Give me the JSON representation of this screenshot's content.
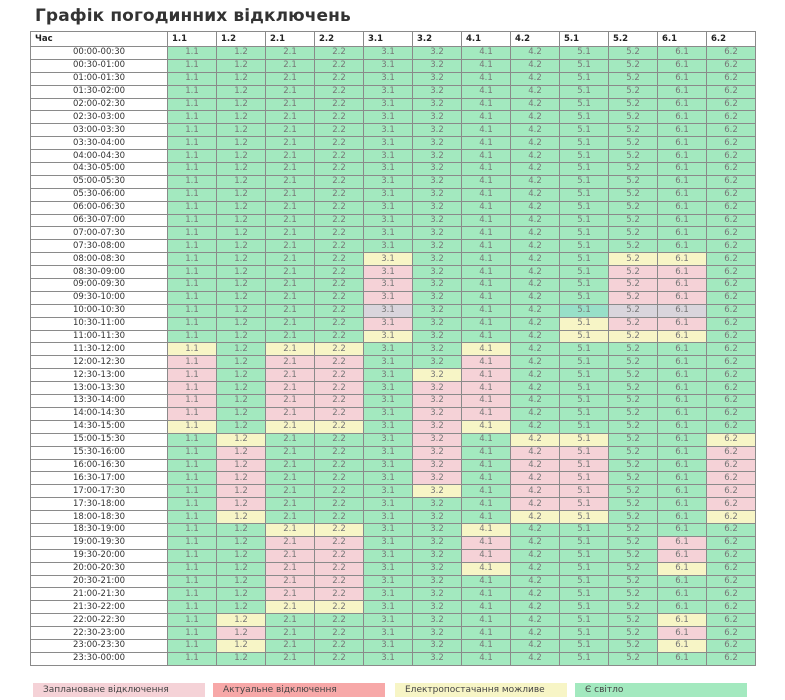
{
  "title": "Графік погодинних відключень",
  "header": [
    "Час",
    "1.1",
    "1.2",
    "2.1",
    "2.2",
    "3.1",
    "3.2",
    "4.1",
    "4.2",
    "5.1",
    "5.2",
    "6.1",
    "6.2"
  ],
  "colors": {
    "g": "#a3e9bf",
    "p": "#f5d2d7",
    "r": "#f7a8a8",
    "y": "#f7f5c6"
  },
  "status_codes": {
    "g": "light",
    "p": "scheduled-outage",
    "r": "actual-outage",
    "y": "possible-supply",
    "h": "scheduled-outage-highlighted",
    "t": "light-highlighted"
  },
  "rows": [
    {
      "time": "00:00-00:30",
      "s": "gggggggggggg"
    },
    {
      "time": "00:30-01:00",
      "s": "gggggggggggg"
    },
    {
      "time": "01:00-01:30",
      "s": "gggggggggggg"
    },
    {
      "time": "01:30-02:00",
      "s": "gggggggggggg"
    },
    {
      "time": "02:00-02:30",
      "s": "gggggggggggg"
    },
    {
      "time": "02:30-03:00",
      "s": "gggggggggggg"
    },
    {
      "time": "03:00-03:30",
      "s": "gggggggggggg"
    },
    {
      "time": "03:30-04:00",
      "s": "gggggggggggg"
    },
    {
      "time": "04:00-04:30",
      "s": "gggggggggggg"
    },
    {
      "time": "04:30-05:00",
      "s": "gggggggggggg"
    },
    {
      "time": "05:00-05:30",
      "s": "gggggggggggg"
    },
    {
      "time": "05:30-06:00",
      "s": "gggggggggggg"
    },
    {
      "time": "06:00-06:30",
      "s": "gggggggggggg"
    },
    {
      "time": "06:30-07:00",
      "s": "gggggggggggg"
    },
    {
      "time": "07:00-07:30",
      "s": "gggggggggggg"
    },
    {
      "time": "07:30-08:00",
      "s": "gggggggggggg"
    },
    {
      "time": "08:00-08:30",
      "s": "ggggyggggyyg"
    },
    {
      "time": "08:30-09:00",
      "s": "ggggpggggppg"
    },
    {
      "time": "09:00-09:30",
      "s": "ggggpggggppg"
    },
    {
      "time": "09:30-10:00",
      "s": "ggggpggggppg"
    },
    {
      "time": "10:00-10:30",
      "s": "gggghgggthhg"
    },
    {
      "time": "10:30-11:00",
      "s": "ggggpgggyppg"
    },
    {
      "time": "11:00-11:30",
      "s": "ggggygggyyyg"
    },
    {
      "time": "11:30-12:00",
      "s": "ygyyggyggggg"
    },
    {
      "time": "12:00-12:30",
      "s": "pgppggpggggg"
    },
    {
      "time": "12:30-13:00",
      "s": "pgppgypggggg"
    },
    {
      "time": "13:00-13:30",
      "s": "pgppgppggggg"
    },
    {
      "time": "13:30-14:00",
      "s": "pgppgppggggg"
    },
    {
      "time": "14:00-14:30",
      "s": "pgppgppggggg"
    },
    {
      "time": "14:30-15:00",
      "s": "ygyygpyggggg"
    },
    {
      "time": "15:00-15:30",
      "s": "gygggpgyyggy"
    },
    {
      "time": "15:30-16:00",
      "s": "gpgggpgppggp"
    },
    {
      "time": "16:00-16:30",
      "s": "gpgggpgppggp"
    },
    {
      "time": "16:30-17:00",
      "s": "gpgggpgppggp"
    },
    {
      "time": "17:00-17:30",
      "s": "gpgggygppggp"
    },
    {
      "time": "17:30-18:00",
      "s": "gpgggggppggp"
    },
    {
      "time": "18:00-18:30",
      "s": "gygggggyyggy"
    },
    {
      "time": "18:30-19:00",
      "s": "ggyyggyggggg"
    },
    {
      "time": "19:00-19:30",
      "s": "ggppggpgggpg"
    },
    {
      "time": "19:30-20:00",
      "s": "ggppggpgggpg"
    },
    {
      "time": "20:00-20:30",
      "s": "ggppggygggyg"
    },
    {
      "time": "20:30-21:00",
      "s": "ggppgggggggg"
    },
    {
      "time": "21:00-21:30",
      "s": "ggppgggggggg"
    },
    {
      "time": "21:30-22:00",
      "s": "ggyygggggggg"
    },
    {
      "time": "22:00-22:30",
      "s": "gyggggggggyg"
    },
    {
      "time": "22:30-23:00",
      "s": "gpggggggggpg"
    },
    {
      "time": "23:00-23:30",
      "s": "gyggggggggyg"
    },
    {
      "time": "23:30-00:00",
      "s": "gggggggggggg"
    }
  ],
  "legend": [
    {
      "label": "Заплановане відключення",
      "code": "p"
    },
    {
      "label": "Актуальне відключення",
      "code": "r"
    },
    {
      "label": "Електропостачання можливе",
      "code": "y"
    },
    {
      "label": "Є світло",
      "code": "g"
    }
  ]
}
